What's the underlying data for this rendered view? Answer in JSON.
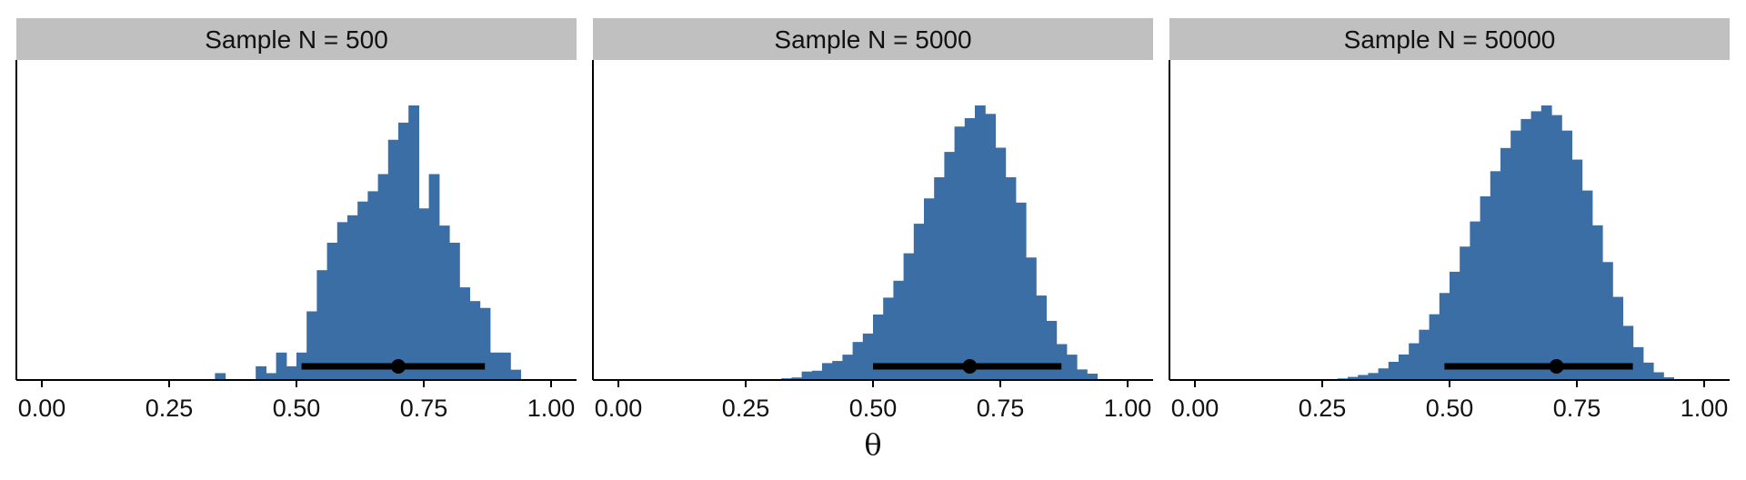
{
  "colors": {
    "bar_fill": "#3a6ea5",
    "strip_fill": "#c0c0c0",
    "interval": "#000000",
    "point": "#000000",
    "axis": "#000000"
  },
  "chart_data": {
    "type": "histogram",
    "xlabel": "θ",
    "ylabel": "",
    "xlim": [
      -0.05,
      1.05
    ],
    "bin_width": 0.02,
    "x_ticks": [
      0.0,
      0.25,
      0.5,
      0.75,
      1.0
    ],
    "x_tick_labels": [
      "0.00",
      "0.25",
      "0.50",
      "0.75",
      "1.00"
    ],
    "y_axis_labels_shown": false,
    "grid": false,
    "legend": "none",
    "interval_summary": "point estimate with thick interval line at base of each panel",
    "panels": [
      {
        "strip_label": "Sample N = 500",
        "bin_starts": [
          0.34,
          0.42,
          0.44,
          0.46,
          0.48,
          0.5,
          0.52,
          0.54,
          0.56,
          0.58,
          0.6,
          0.62,
          0.64,
          0.66,
          0.68,
          0.7,
          0.72,
          0.74,
          0.76,
          0.78,
          0.8,
          0.82,
          0.84,
          0.86,
          0.88,
          0.9,
          0.92
        ],
        "counts": [
          2,
          4,
          2,
          8,
          4,
          8,
          20,
          32,
          40,
          46,
          48,
          52,
          55,
          60,
          70,
          75,
          80,
          50,
          60,
          45,
          40,
          27,
          23,
          21,
          8,
          8,
          3
        ],
        "point_estimate": 0.7,
        "interval": [
          0.51,
          0.87
        ]
      },
      {
        "strip_label": "Sample N = 5000",
        "bin_starts": [
          0.3,
          0.32,
          0.34,
          0.36,
          0.38,
          0.4,
          0.42,
          0.44,
          0.46,
          0.48,
          0.5,
          0.52,
          0.54,
          0.56,
          0.58,
          0.6,
          0.62,
          0.64,
          0.66,
          0.68,
          0.7,
          0.72,
          0.74,
          0.76,
          0.78,
          0.8,
          0.82,
          0.84,
          0.86,
          0.88,
          0.9,
          0.92
        ],
        "counts": [
          2,
          4,
          6,
          20,
          22,
          40,
          45,
          60,
          90,
          110,
          155,
          195,
          235,
          300,
          370,
          430,
          480,
          540,
          600,
          620,
          650,
          630,
          550,
          480,
          420,
          290,
          200,
          140,
          85,
          60,
          25,
          15
        ],
        "point_estimate": 0.69,
        "interval": [
          0.5,
          0.87
        ]
      },
      {
        "strip_label": "Sample N = 50000",
        "bin_starts": [
          0.24,
          0.26,
          0.28,
          0.3,
          0.32,
          0.34,
          0.36,
          0.38,
          0.4,
          0.42,
          0.44,
          0.46,
          0.48,
          0.5,
          0.52,
          0.54,
          0.56,
          0.58,
          0.6,
          0.62,
          0.64,
          0.66,
          0.68,
          0.7,
          0.72,
          0.74,
          0.76,
          0.78,
          0.8,
          0.82,
          0.84,
          0.86,
          0.88,
          0.9,
          0.92,
          0.94
        ],
        "counts": [
          10,
          20,
          40,
          80,
          130,
          180,
          300,
          470,
          660,
          950,
          1300,
          1700,
          2250,
          2800,
          3450,
          4100,
          4750,
          5400,
          6000,
          6450,
          6750,
          6950,
          7100,
          6850,
          6450,
          5700,
          4900,
          4000,
          3050,
          2150,
          1400,
          850,
          450,
          200,
          70,
          15
        ],
        "point_estimate": 0.71,
        "interval": [
          0.49,
          0.86
        ]
      }
    ]
  }
}
